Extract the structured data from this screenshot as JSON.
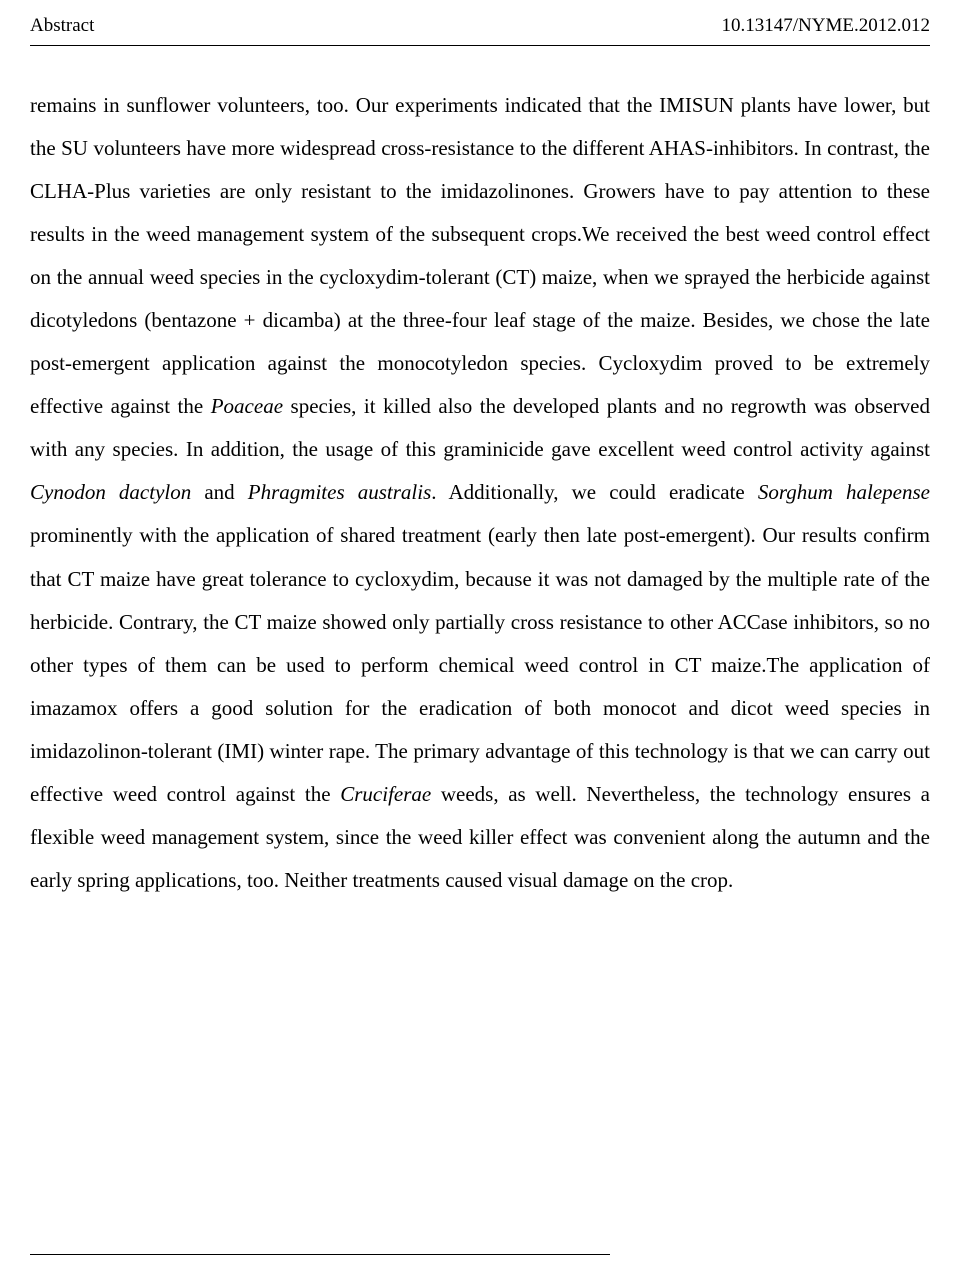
{
  "header": {
    "left": "Abstract",
    "right": "10.13147/NYME.2012.012"
  },
  "paragraphs": [
    {
      "segments": [
        {
          "text": "remains in sunflower volunteers, too. Our experiments indicated that the IMISUN plants have lower, but the SU volunteers have more widespread cross-resistance to the different AHAS-inhibitors. In contrast, the CLHA-Plus varieties are only resistant to the imidazolinones. Growers have to pay attention to these results in the weed management system of the subsequent crops.",
          "italic": false
        }
      ]
    },
    {
      "segments": [
        {
          "text": "We received the best weed control effect on the annual weed species in the cycloxydim-tolerant (CT) maize, when we sprayed the herbicide against dicotyledons (bentazone + dicamba) at the three-four leaf stage of the maize. Besides, we chose the late post-emergent application against the monocotyledon species. Cycloxydim proved to be extremely effective against the ",
          "italic": false
        },
        {
          "text": "Poaceae",
          "italic": true
        },
        {
          "text": " species, it killed also the developed plants and no regrowth was observed with any species. In addition, the usage of this graminicide gave excellent weed control activity against ",
          "italic": false
        },
        {
          "text": "Cynodon dactylon",
          "italic": true
        },
        {
          "text": " and ",
          "italic": false
        },
        {
          "text": "Phragmites australis",
          "italic": true
        },
        {
          "text": ". Additionally, we could eradicate ",
          "italic": false
        },
        {
          "text": "Sorghum halepense",
          "italic": true
        },
        {
          "text": " prominently with the application of shared treatment (early then late post-emergent). Our results confirm that CT maize have great tolerance to cycloxydim, because it was not damaged by the multiple rate of the herbicide. Contrary, the CT maize showed only partially cross resistance to other ACCase inhibitors, so no other types of them can be used to perform chemical weed control in CT maize.",
          "italic": false
        }
      ]
    },
    {
      "segments": [
        {
          "text": "The application of imazamox offers a good solution for the eradication of both monocot and dicot weed species in imidazolinon-tolerant (IMI) winter rape. The primary advantage of this technology is that we can carry out effective weed control against the ",
          "italic": false
        },
        {
          "text": "Cruciferae",
          "italic": true
        },
        {
          "text": " weeds, as well. Nevertheless, the technology ensures a flexible weed management system, since the weed killer effect was convenient along the autumn and the early spring applications, too. Neither treatments caused visual damage on the crop.",
          "italic": false
        }
      ]
    }
  ]
}
